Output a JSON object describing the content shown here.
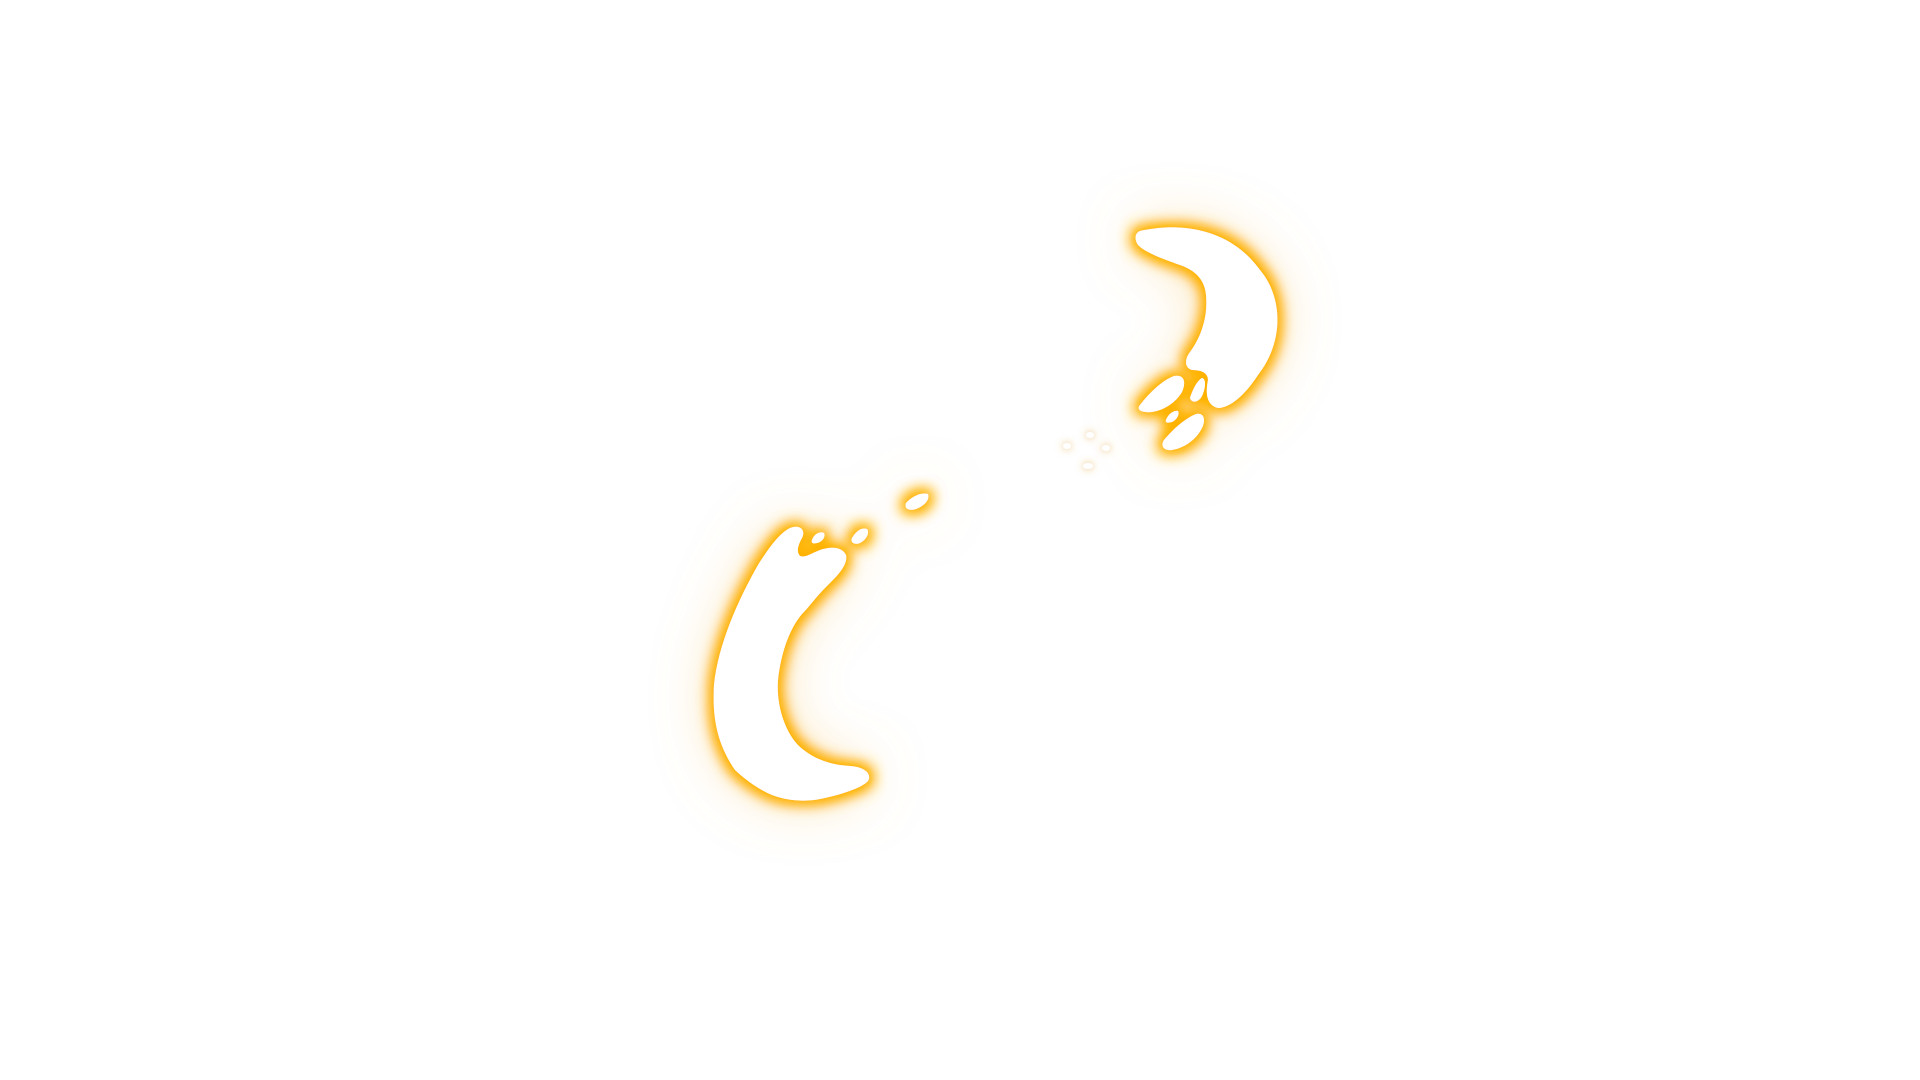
{
  "scene": {
    "background_color": "#ffffff",
    "glow_color": "#ffb300",
    "glow_soft_color": "#f5c86a",
    "shape_fill_color": "#ffffff",
    "elements": [
      "glowing-crescent-upper-right",
      "glowing-crescent-lower-left",
      "glowing-droplets"
    ]
  }
}
